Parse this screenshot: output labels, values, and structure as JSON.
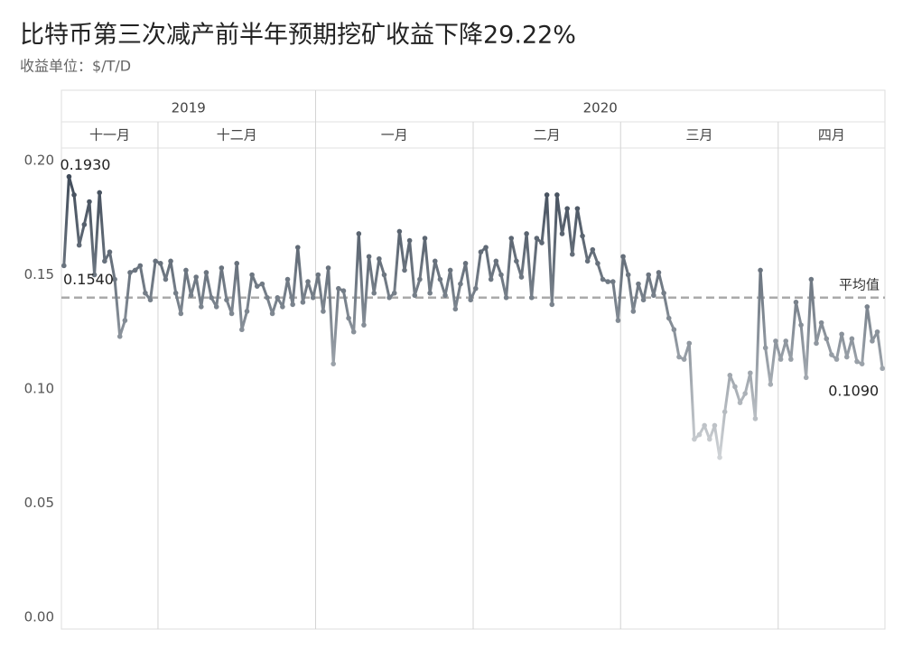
{
  "chart_data": {
    "type": "line",
    "title": "比特币第三次减产前半年预期挖矿收益下降29.22%",
    "subtitle": "收益单位：$/T/D",
    "color": "#3f4a58",
    "ylim": [
      0,
      0.2
    ],
    "yticks": [
      {
        "value": 0,
        "label": "0.00"
      },
      0.05,
      {
        "value": 0.1,
        "label": "0.10"
      },
      0.15,
      {
        "value": 0.2,
        "label": "0.20"
      }
    ],
    "average": {
      "label": "平均值",
      "value": 0.14
    },
    "annotations": [
      "0.1540",
      "0.1930",
      "0.1090"
    ],
    "x_groups": [
      {
        "label": "2019",
        "months": [
          {
            "label": "十一月",
            "values": [
              0.154,
              0.193,
              0.185,
              0.163,
              0.172,
              0.182,
              0.15,
              0.186,
              0.156,
              0.16,
              0.148,
              0.123,
              0.13,
              0.151,
              0.152,
              0.154,
              0.142,
              0.139,
              0.156
            ]
          },
          {
            "label": "十二月",
            "values": [
              0.155,
              0.148,
              0.156,
              0.142,
              0.133,
              0.152,
              0.141,
              0.149,
              0.136,
              0.151,
              0.14,
              0.136,
              0.153,
              0.139,
              0.133,
              0.155,
              0.126,
              0.134,
              0.15,
              0.145,
              0.146,
              0.14,
              0.133,
              0.14,
              0.136,
              0.148,
              0.137,
              0.162,
              0.138,
              0.147,
              0.14
            ]
          }
        ]
      },
      {
        "label": "2020",
        "months": [
          {
            "label": "一月",
            "values": [
              0.15,
              0.134,
              0.153,
              0.111,
              0.144,
              0.143,
              0.131,
              0.125,
              0.168,
              0.128,
              0.158,
              0.142,
              0.157,
              0.15,
              0.14,
              0.142,
              0.169,
              0.152,
              0.165,
              0.141,
              0.148,
              0.166,
              0.142,
              0.156,
              0.148,
              0.141,
              0.152,
              0.135,
              0.146,
              0.155,
              0.139
            ]
          },
          {
            "label": "二月",
            "values": [
              0.144,
              0.16,
              0.162,
              0.148,
              0.156,
              0.15,
              0.14,
              0.166,
              0.156,
              0.149,
              0.168,
              0.14,
              0.166,
              0.164,
              0.185,
              0.137,
              0.185,
              0.168,
              0.179,
              0.159,
              0.179,
              0.167,
              0.156,
              0.161,
              0.155,
              0.148,
              0.147,
              0.147,
              0.13
            ]
          },
          {
            "label": "三月",
            "values": [
              0.158,
              0.15,
              0.134,
              0.146,
              0.139,
              0.15,
              0.141,
              0.151,
              0.142,
              0.131,
              0.126,
              0.114,
              0.113,
              0.12,
              0.078,
              0.08,
              0.084,
              0.078,
              0.084,
              0.07,
              0.09,
              0.106,
              0.101,
              0.094,
              0.098,
              0.107,
              0.087,
              0.152,
              0.118,
              0.102,
              0.121
            ]
          },
          {
            "label": "四月",
            "values": [
              0.113,
              0.121,
              0.113,
              0.138,
              0.128,
              0.105,
              0.148,
              0.12,
              0.129,
              0.122,
              0.115,
              0.113,
              0.124,
              0.114,
              0.122,
              0.112,
              0.111,
              0.136,
              0.121,
              0.125,
              0.109
            ]
          }
        ]
      }
    ]
  }
}
